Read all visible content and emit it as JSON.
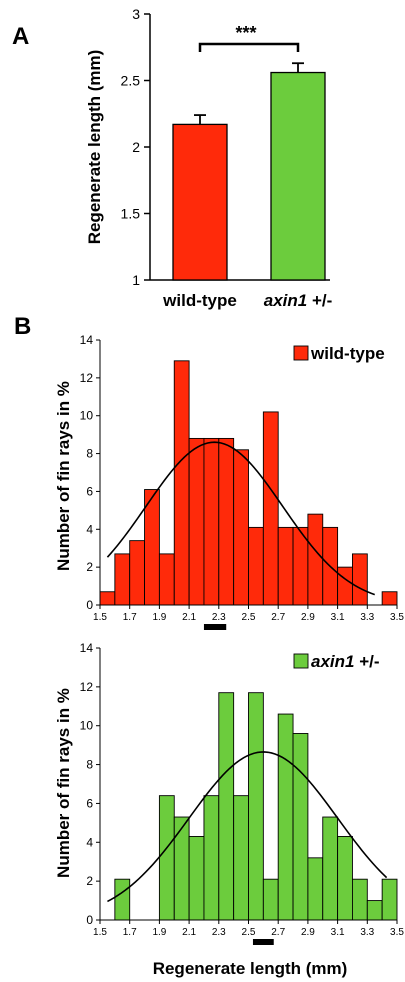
{
  "colors": {
    "red": "#ff2a0a",
    "green": "#6ccc3d",
    "line": "#000000"
  },
  "chart_data": [
    {
      "panel": "A",
      "type": "bar",
      "categories": [
        "wild-type",
        "axin1 +/-"
      ],
      "category_parts": [
        {
          "italic": "",
          "plain": "wild-type"
        },
        {
          "italic": "axin1",
          "plain": " +/-"
        }
      ],
      "values": [
        2.17,
        2.56
      ],
      "errors": [
        0.07,
        0.07
      ],
      "ylabel": "Regenerate length (mm)",
      "ylim": [
        1,
        3
      ],
      "yticks": [
        "1",
        "1.5",
        "2",
        "2.5",
        "3"
      ],
      "significance": "***",
      "grid": false
    },
    {
      "panel": "B",
      "type": "bar",
      "legend": {
        "italic": "",
        "plain": "wild-type"
      },
      "legend_placement": "top-right",
      "bin_start": 1.5,
      "bin_width": 0.1,
      "values": [
        0.7,
        2.7,
        3.4,
        6.1,
        2.7,
        12.9,
        8.8,
        8.8,
        8.8,
        8.2,
        4.1,
        10.2,
        4.1,
        4.1,
        4.8,
        4.1,
        2.0,
        2.7,
        0,
        0.7
      ],
      "fit_curve": {
        "mean": 2.27,
        "peak": 8.6,
        "sd": 0.46,
        "x_range": [
          1.55,
          3.35
        ]
      },
      "mean_marker": [
        2.2,
        2.35
      ],
      "ylabel": "Number of fin rays in %",
      "ylim": [
        0,
        14
      ],
      "yticks": [
        "0",
        "2",
        "4",
        "6",
        "8",
        "10",
        "12",
        "14"
      ],
      "xlim": [
        1.5,
        3.5
      ],
      "xticks": [
        "1.5",
        "1.7",
        "1.9",
        "2.1",
        "2.3",
        "2.5",
        "2.7",
        "2.9",
        "3.1",
        "3.3",
        "3.5"
      ]
    },
    {
      "panel": "",
      "type": "bar",
      "legend": {
        "italic": "axin1",
        "plain": " +/-"
      },
      "legend_placement": "top-right",
      "bin_start": 1.5,
      "bin_width": 0.1,
      "values": [
        0,
        2.1,
        0,
        0,
        6.4,
        5.3,
        4.3,
        6.4,
        11.7,
        6.4,
        11.7,
        2.1,
        10.6,
        9.6,
        3.2,
        5.3,
        4.3,
        2.1,
        1.0,
        2.1
      ],
      "fit_curve": {
        "mean": 2.6,
        "peak": 8.65,
        "sd": 0.5,
        "x_range": [
          1.55,
          3.43
        ]
      },
      "mean_marker": [
        2.53,
        2.67
      ],
      "ylabel": "Number of fin rays in %",
      "xlabel": "Regenerate length (mm)",
      "ylim": [
        0,
        14
      ],
      "yticks": [
        "0",
        "2",
        "4",
        "6",
        "8",
        "10",
        "12",
        "14"
      ],
      "xlim": [
        1.5,
        3.5
      ],
      "xticks": [
        "1.5",
        "1.7",
        "1.9",
        "2.1",
        "2.3",
        "2.5",
        "2.7",
        "2.9",
        "3.1",
        "3.3",
        "3.5"
      ]
    }
  ]
}
